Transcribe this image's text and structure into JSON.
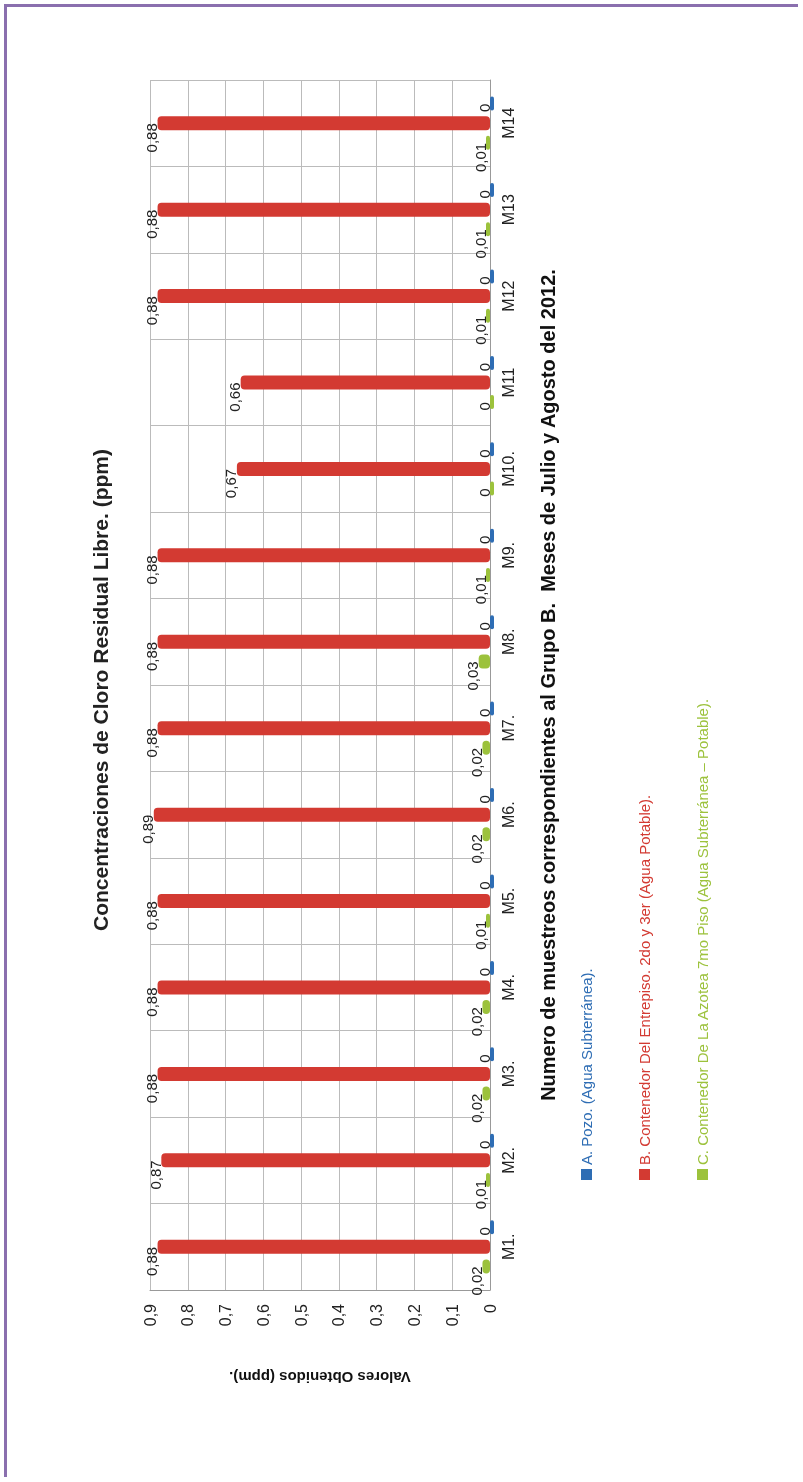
{
  "chart_data": {
    "type": "bar",
    "orientation": "horizontal",
    "title": "Concentraciones de Cloro Residual Libre. (ppm)",
    "xlabel": "Valores Obtenidos (ppm).",
    "ylabel": "Numero de muestreos correspondientes al Grupo B.  Meses de Julio y Agosto del 2012.",
    "categories": [
      "M14",
      "M13",
      "M12",
      "M11",
      "M10.",
      "M9.",
      "M8.",
      "M7.",
      "M6.",
      "M5.",
      "M4.",
      "M3.",
      "M2.",
      "M1."
    ],
    "series": [
      {
        "name": "A. Pozo. (Agua Subterránea).",
        "color": "#2e6db4",
        "values": [
          0,
          0,
          0,
          0,
          0,
          0,
          0,
          0,
          0,
          0,
          0,
          0,
          0,
          0
        ],
        "value_labels": [
          "0",
          "0",
          "0",
          "0",
          "0",
          "0",
          "0",
          "0",
          "0",
          "0",
          "0",
          "0",
          "0",
          "0"
        ]
      },
      {
        "name": "B. Contenedor Del Entrepiso. 2do y 3er (Agua Potable).",
        "color": "#d33a32",
        "values": [
          0.88,
          0.88,
          0.88,
          0.66,
          0.67,
          0.88,
          0.88,
          0.88,
          0.89,
          0.88,
          0.88,
          0.88,
          0.87,
          0.88
        ],
        "value_labels": [
          "0,88",
          "0,88",
          "0,88",
          "0,66",
          "0,67",
          "0,88",
          "0,88",
          "0,88",
          "0,89",
          "0,88",
          "0,88",
          "0,88",
          "0,87",
          "0,88"
        ]
      },
      {
        "name": "C. Contenedor De La Azotea 7mo Piso  (Agua Subterránea – Potable).",
        "color": "#9cc23c",
        "values": [
          0.01,
          0.01,
          0.01,
          0,
          0,
          0.01,
          0.03,
          0.02,
          0.02,
          0.01,
          0.02,
          0.02,
          0.01,
          0.02
        ],
        "value_labels": [
          "0,01",
          "0,01",
          "0,01",
          "0",
          "0",
          "0,01",
          "0,03",
          "0,02",
          "0,02",
          "0,01",
          "0,02",
          "0,02",
          "0,01",
          "0,02"
        ]
      }
    ],
    "xlim": [
      0.9,
      0
    ],
    "xticks": [
      0,
      {
        "value": 0.1,
        "label": "0,1"
      },
      {
        "value": 0.2,
        "label": "0,2"
      },
      {
        "value": 0.3,
        "label": "0,3"
      },
      {
        "value": 0.4,
        "label": "0,4"
      },
      {
        "value": 0.5,
        "label": "0,5"
      },
      {
        "value": 0.6,
        "label": "0,6"
      },
      {
        "value": 0.7,
        "label": "0,7"
      },
      {
        "value": 0.8,
        "label": "0,8"
      },
      {
        "value": 0.9,
        "label": "0,9"
      }
    ],
    "grid": true,
    "legend": "right"
  }
}
